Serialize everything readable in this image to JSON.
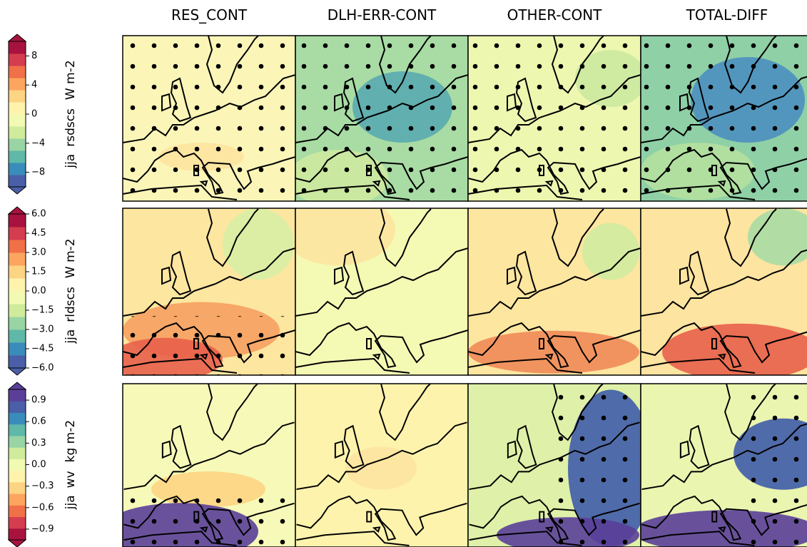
{
  "columns": [
    "RES_CONT",
    "DLH-ERR-CONT",
    "OTHER-CONT",
    "TOTAL-DIFF"
  ],
  "rows": [
    {
      "season": "jja",
      "variable": "rsdscs",
      "units": "W m-2",
      "lim": [
        -10,
        10
      ],
      "ticks": [
        8,
        4,
        0,
        {
          "value": -4,
          "label": "−4"
        },
        {
          "value": -8,
          "label": "−8"
        }
      ],
      "colors": [
        "#4a5fa8",
        "#3a8cba",
        "#5fb8a8",
        "#98d4a4",
        "#cfeb9c",
        "#f2f9b2",
        "#fef3ad",
        "#fdd483",
        "#fca55e",
        "#f07048",
        "#d43d4f",
        "#a8123f"
      ]
    },
    {
      "season": "jja",
      "variable": "rldscs",
      "units": "W m-2",
      "lim": [
        -6,
        6
      ],
      "ticks": [
        {
          "value": 6,
          "label": "6.0"
        },
        4.5,
        {
          "value": 3,
          "label": "3.0"
        },
        1.5,
        {
          "value": 0,
          "label": "0.0"
        },
        {
          "value": -1.5,
          "label": "−1.5"
        },
        {
          "value": -3,
          "label": "−3.0"
        },
        {
          "value": -4.5,
          "label": "−4.5"
        },
        {
          "value": -6,
          "label": "−6.0"
        }
      ],
      "colors": [
        "#4a5fa8",
        "#3a8cba",
        "#5fb8a8",
        "#98d4a4",
        "#cfeb9c",
        "#f2f9b2",
        "#fef3ad",
        "#fdd483",
        "#fca55e",
        "#f07048",
        "#d43d4f",
        "#a8123f"
      ]
    },
    {
      "season": "jja",
      "variable": "wv",
      "units": "kg m-2",
      "lim": [
        -1.05,
        1.05
      ],
      "ticks": [
        0.9,
        0.6,
        0.3,
        {
          "value": 0,
          "label": "0.0"
        },
        {
          "value": -0.3,
          "label": "−0.3"
        },
        {
          "value": -0.6,
          "label": "−0.6"
        },
        {
          "value": -0.9,
          "label": "−0.9"
        }
      ],
      "colors": [
        "#a8123f",
        "#d43d4f",
        "#f07048",
        "#fca55e",
        "#fdd483",
        "#fef3ad",
        "#f2f9b2",
        "#cfeb9c",
        "#98d4a4",
        "#5fb8a8",
        "#3a8cba",
        "#4a5fa8",
        "#5a3f98"
      ]
    }
  ]
}
